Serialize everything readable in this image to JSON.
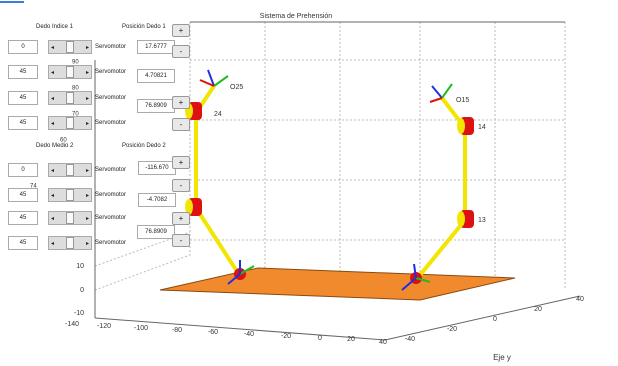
{
  "plot": {
    "title": "Sistema de Prehensión",
    "z_ticks": [
      "10",
      "0",
      "-10"
    ],
    "x_ticks": [
      "-140",
      "-120",
      "-100",
      "-80",
      "-60",
      "-40",
      "-20",
      "0",
      "20",
      "40"
    ],
    "y_ticks": [
      "-40",
      "-20",
      "0",
      "20",
      "40"
    ],
    "y_label": "Eje y",
    "node_labels": [
      "O25",
      "24",
      "O15",
      "14",
      "13"
    ]
  },
  "finger1": {
    "header": "Dedo Indice 1",
    "position_header": "Posición Dedo 1",
    "inputs": [
      "0",
      "45",
      "45",
      "45"
    ],
    "servo_labels": [
      "Servomotor",
      "Servomotor",
      "Servomotor",
      "Servomotor"
    ],
    "positions": [
      "17.6777",
      "4.70821",
      "76.8909"
    ]
  },
  "finger2": {
    "header": "Dedo Medio 2",
    "position_header": "Posición Dedo 2",
    "inputs": [
      "0",
      "45",
      "45",
      "45"
    ],
    "servo_labels": [
      "Servomotor",
      "Servomotor",
      "Servomotor",
      "Servomotor"
    ],
    "positions": [
      "-116.670",
      "-4.7082",
      "76.8909"
    ]
  },
  "buttons": [
    "+",
    "-",
    "+",
    "-",
    "+",
    "-",
    "+",
    "-"
  ],
  "overlay_labels": [
    "90",
    "80",
    "70",
    "60",
    "74"
  ]
}
